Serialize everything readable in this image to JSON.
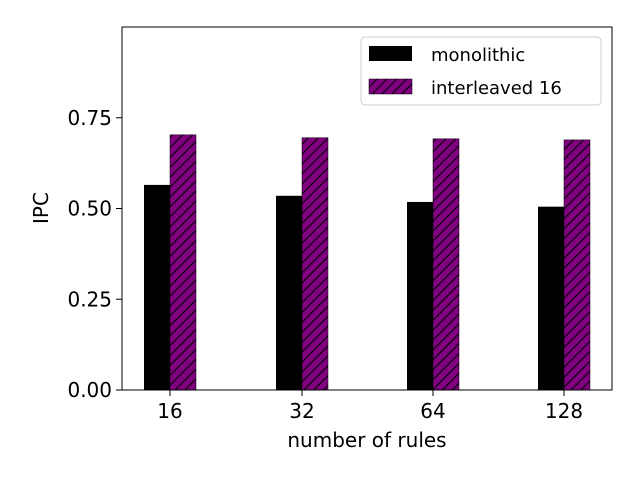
{
  "chart_data": {
    "type": "bar",
    "title": "",
    "xlabel": "number of rules",
    "ylabel": "IPC",
    "categories": [
      "16",
      "32",
      "64",
      "128"
    ],
    "series": [
      {
        "name": "monolithic",
        "values": [
          0.565,
          0.535,
          0.518,
          0.505
        ],
        "color": "#000000",
        "pattern": "solid"
      },
      {
        "name": "interleaved 16",
        "values": [
          0.703,
          0.695,
          0.692,
          0.689
        ],
        "color": "#800080",
        "pattern": "diagonal-hatch"
      }
    ],
    "ylim": [
      0,
      1.0
    ],
    "yticks": [
      "0.00",
      "0.25",
      "0.50",
      "0.75"
    ],
    "grid": false,
    "legend_position": "top-right"
  }
}
